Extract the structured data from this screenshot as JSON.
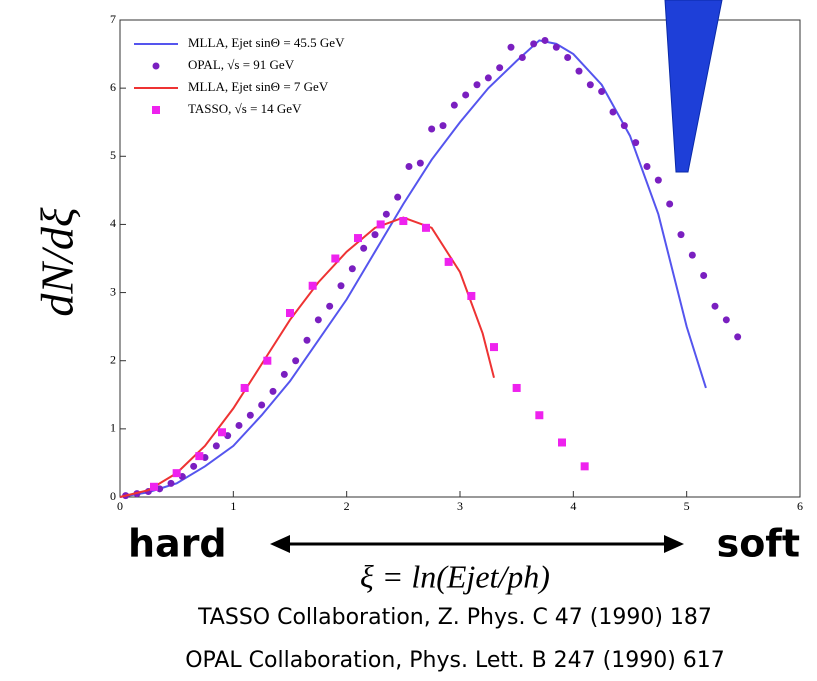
{
  "chart_data": {
    "type": "line",
    "ylabel": "dN/dξ",
    "xlabel": "ξ = ln(Ejet/ph)",
    "annotations": {
      "left": "hard",
      "right": "soft"
    },
    "references": [
      "TASSO Collaboration, Z. Phys. C 47 (1990) 187",
      "OPAL Collaboration, Phys. Lett. B 247 (1990) 617"
    ],
    "xlim": [
      0,
      6
    ],
    "xticks": [
      0,
      1,
      2,
      3,
      4,
      5,
      6
    ],
    "ylim": [
      0,
      7
    ],
    "yticks": [
      0,
      1,
      2,
      3,
      4,
      5,
      6,
      7
    ],
    "legend": "top-left",
    "series": [
      {
        "name": "MLLA, Ejet sinΘ = 45.5 GeV",
        "color": "#5555ee",
        "marker": "none",
        "x": [
          0,
          0.25,
          0.5,
          0.75,
          1,
          1.25,
          1.5,
          1.75,
          2,
          2.25,
          2.5,
          2.75,
          3,
          3.25,
          3.5,
          3.7,
          3.85,
          4,
          4.25,
          4.5,
          4.75,
          5,
          5.17
        ],
        "values": [
          0,
          0.07,
          0.2,
          0.45,
          0.75,
          1.2,
          1.7,
          2.3,
          2.9,
          3.6,
          4.3,
          4.95,
          5.5,
          6.0,
          6.4,
          6.7,
          6.65,
          6.5,
          6.05,
          5.3,
          4.15,
          2.5,
          1.6
        ]
      },
      {
        "name": "OPAL, √s = 91 GeV",
        "color": "#7a1fc0",
        "marker": "circle",
        "x": [
          0.05,
          0.15,
          0.25,
          0.35,
          0.45,
          0.55,
          0.65,
          0.75,
          0.85,
          0.95,
          1.05,
          1.15,
          1.25,
          1.35,
          1.45,
          1.55,
          1.65,
          1.75,
          1.85,
          1.95,
          2.05,
          2.15,
          2.25,
          2.35,
          2.45,
          2.55,
          2.65,
          2.75,
          2.85,
          2.95,
          3.05,
          3.15,
          3.25,
          3.35,
          3.45,
          3.55,
          3.65,
          3.75,
          3.85,
          3.95,
          4.05,
          4.15,
          4.25,
          4.35,
          4.45,
          4.55,
          4.65,
          4.75,
          4.85,
          4.95,
          5.05,
          5.15,
          5.25,
          5.35,
          5.45
        ],
        "values": [
          0.02,
          0.05,
          0.08,
          0.12,
          0.2,
          0.3,
          0.45,
          0.58,
          0.75,
          0.9,
          1.05,
          1.2,
          1.35,
          1.55,
          1.8,
          2.0,
          2.3,
          2.6,
          2.8,
          3.1,
          3.35,
          3.65,
          3.85,
          4.15,
          4.4,
          4.85,
          4.9,
          5.4,
          5.45,
          5.75,
          5.9,
          6.05,
          6.15,
          6.3,
          6.6,
          6.45,
          6.65,
          6.7,
          6.6,
          6.45,
          6.25,
          6.05,
          5.95,
          5.65,
          5.45,
          5.2,
          4.85,
          4.65,
          4.3,
          3.85,
          3.55,
          3.25,
          2.8,
          2.6,
          2.35
        ]
      },
      {
        "name": "MLLA, Ejet sinΘ = 7 GeV",
        "color": "#ee3333",
        "marker": "none",
        "x": [
          0,
          0.25,
          0.5,
          0.75,
          1,
          1.25,
          1.5,
          1.75,
          2,
          2.25,
          2.5,
          2.75,
          3,
          3.2,
          3.3
        ],
        "values": [
          0,
          0.1,
          0.35,
          0.75,
          1.3,
          1.95,
          2.6,
          3.15,
          3.6,
          3.95,
          4.1,
          3.95,
          3.3,
          2.4,
          1.75
        ]
      },
      {
        "name": "TASSO, √s = 14 GeV",
        "color": "#ee22ee",
        "marker": "square",
        "x": [
          0.3,
          0.5,
          0.7,
          0.9,
          1.1,
          1.3,
          1.5,
          1.7,
          1.9,
          2.1,
          2.3,
          2.5,
          2.7,
          2.9,
          3.1,
          3.3,
          3.5,
          3.7,
          3.9,
          4.1
        ],
        "values": [
          0.15,
          0.35,
          0.6,
          0.95,
          1.6,
          2.0,
          2.7,
          3.1,
          3.5,
          3.8,
          4.0,
          4.05,
          3.95,
          3.45,
          2.95,
          2.2,
          1.6,
          1.2,
          0.8,
          0.45
        ]
      }
    ]
  }
}
